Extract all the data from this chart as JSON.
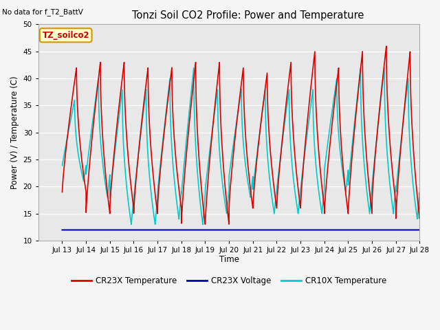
{
  "title": "Tonzi Soil CO2 Profile: Power and Temperature",
  "no_data_text": "No data for f_T2_BattV",
  "ylabel": "Power (V) / Temperature (C)",
  "xlabel": "Time",
  "ylim": [
    10,
    50
  ],
  "yticks": [
    10,
    15,
    20,
    25,
    30,
    35,
    40,
    45,
    50
  ],
  "xlim_start": 12,
  "xlim_end": 28,
  "xtick_labels": [
    "Jul 13",
    "Jul 14",
    "Jul 15",
    "Jul 16",
    "Jul 17",
    "Jul 18",
    "Jul 19",
    "Jul 20",
    "Jul 21",
    "Jul 22",
    "Jul 23",
    "Jul 24",
    "Jul 25",
    "Jul 26",
    "Jul 27",
    "Jul 28"
  ],
  "xtick_positions": [
    13,
    14,
    15,
    16,
    17,
    18,
    19,
    20,
    21,
    22,
    23,
    24,
    25,
    26,
    27,
    28
  ],
  "bg_color": "#e8e8e8",
  "grid_color": "#ffffff",
  "cr23x_temp_color": "#dd0000",
  "cr23x_volt_color": "#0000bb",
  "cr10x_temp_color": "#00cccc",
  "voltage_value": 12.0,
  "legend_box_color": "#ffffcc",
  "legend_box_border": "#cc9900",
  "box_label": "TZ_soilco2",
  "legend_entries": [
    "CR23X Temperature",
    "CR23X Voltage",
    "CR10X Temperature"
  ]
}
